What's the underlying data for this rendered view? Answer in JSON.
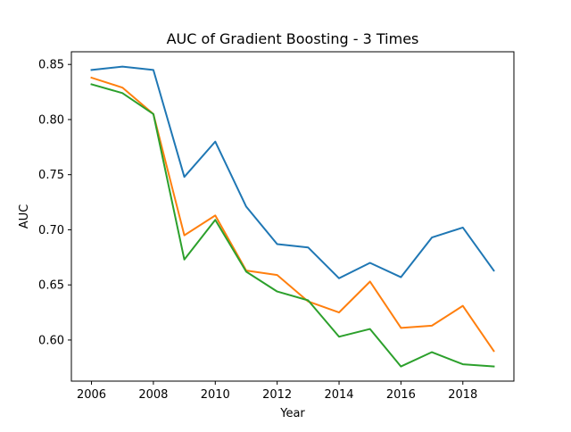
{
  "chart_data": {
    "type": "line",
    "title": "AUC of Gradient Boosting - 3 Times",
    "xlabel": "Year",
    "ylabel": "AUC",
    "x": [
      2006,
      2007,
      2008,
      2009,
      2010,
      2011,
      2012,
      2013,
      2014,
      2015,
      2016,
      2017,
      2018,
      2019
    ],
    "xlim": [
      2005.35,
      2019.65
    ],
    "ylim": [
      0.5627,
      0.8615
    ],
    "xticks": [
      2006,
      2008,
      2010,
      2012,
      2014,
      2016,
      2018
    ],
    "xtick_labels": [
      "2006",
      "2008",
      "2010",
      "2012",
      "2014",
      "2016",
      "2018"
    ],
    "yticks": [
      0.6,
      0.65,
      0.7,
      0.75,
      0.8,
      0.85
    ],
    "ytick_labels": [
      "0.60",
      "0.65",
      "0.70",
      "0.75",
      "0.80",
      "0.85"
    ],
    "grid": false,
    "legend": "none",
    "series": [
      {
        "color": "#1f77b4",
        "values": [
          0.845,
          0.848,
          0.845,
          0.748,
          0.78,
          0.721,
          0.687,
          0.684,
          0.656,
          0.67,
          0.657,
          0.693,
          0.702,
          0.663
        ]
      },
      {
        "color": "#ff7f0e",
        "values": [
          0.838,
          0.829,
          0.805,
          0.695,
          0.713,
          0.663,
          0.659,
          0.635,
          0.625,
          0.653,
          0.611,
          0.613,
          0.631,
          0.59
        ]
      },
      {
        "color": "#2ca02c",
        "values": [
          0.832,
          0.824,
          0.805,
          0.673,
          0.709,
          0.662,
          0.644,
          0.636,
          0.603,
          0.61,
          0.576,
          0.589,
          0.578,
          0.576
        ]
      }
    ]
  }
}
